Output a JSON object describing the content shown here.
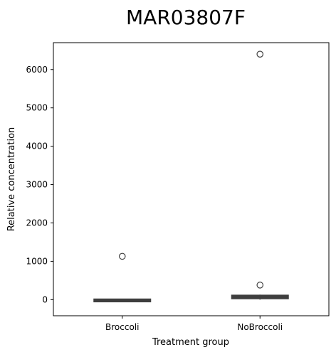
{
  "chart_data": {
    "type": "box",
    "title": "MAR03807F",
    "xlabel": "Treatment group",
    "ylabel": "Relative concentration",
    "categories": [
      "Broccoli",
      "NoBroccoli"
    ],
    "ylim": [
      -420,
      6700
    ],
    "yticks": [
      0,
      1000,
      2000,
      3000,
      4000,
      5000,
      6000
    ],
    "ytick_labels": [
      "0",
      "1000",
      "2000",
      "3000",
      "4000",
      "5000",
      "6000"
    ],
    "grid": false,
    "box_color": "#3f3f3f",
    "boxes": [
      {
        "category": "Broccoli",
        "whisker_low": -60,
        "q1": -60,
        "median": -10,
        "q3": 20,
        "whisker_high": 20,
        "outliers": [
          1130
        ]
      },
      {
        "category": "NoBroccoli",
        "whisker_low": 0,
        "q1": 20,
        "median": 70,
        "q3": 120,
        "whisker_high": 130,
        "outliers": [
          380,
          6400
        ]
      }
    ]
  }
}
